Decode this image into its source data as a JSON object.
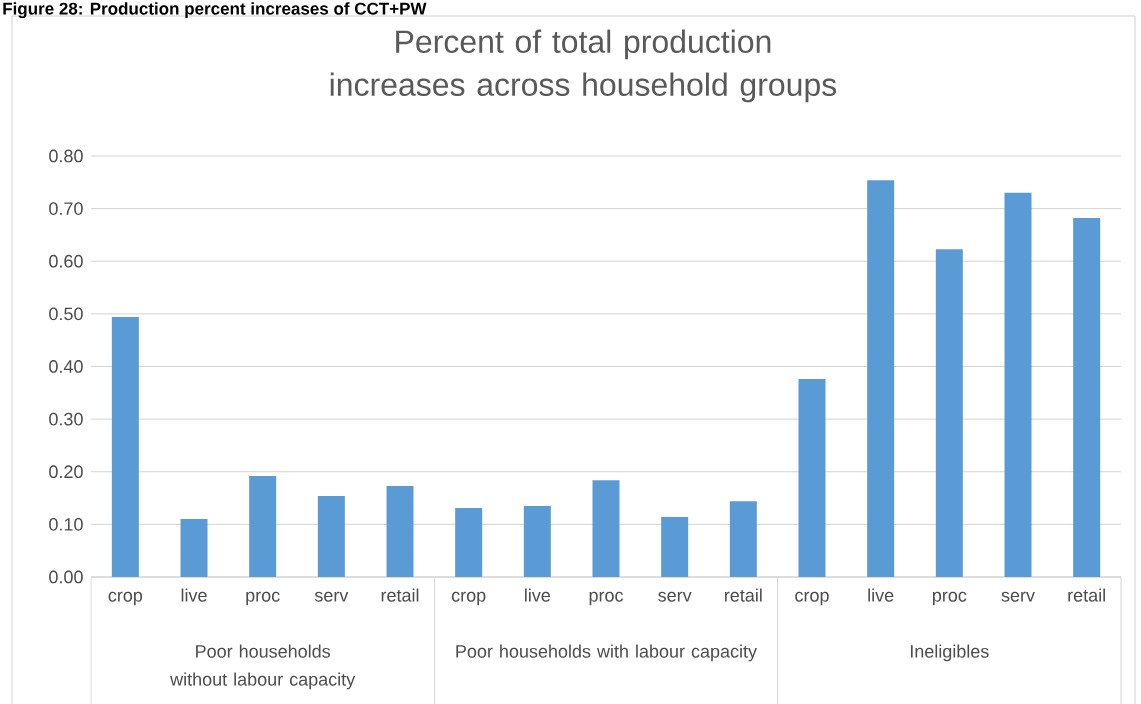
{
  "chart_data": {
    "type": "bar",
    "title": "Percent of total production increases across household groups",
    "categories": [
      "crop",
      "live",
      "proc",
      "serv",
      "retail",
      "crop",
      "live",
      "proc",
      "serv",
      "retail",
      "crop",
      "live",
      "proc",
      "serv",
      "retail"
    ],
    "values": [
      0.494,
      0.11,
      0.192,
      0.154,
      0.173,
      0.131,
      0.135,
      0.184,
      0.114,
      0.144,
      0.376,
      0.754,
      0.623,
      0.73,
      0.682
    ],
    "color": "#5b9bd5",
    "ylim": [
      0,
      0.8
    ],
    "yticks": [
      {
        "value": 0,
        "label": "0.00"
      },
      {
        "value": 0.1,
        "label": "0.10"
      },
      {
        "value": 0.2,
        "label": "0.20"
      },
      {
        "value": 0.3,
        "label": "0.30"
      },
      {
        "value": 0.4,
        "label": "0.40"
      },
      {
        "value": 0.5,
        "label": "0.50"
      },
      {
        "value": 0.6,
        "label": "0.60"
      },
      {
        "value": 0.7,
        "label": "0.70"
      },
      {
        "value": 0.8,
        "label": "0.80"
      }
    ],
    "grid": "y",
    "annotations": [
      "Figure 28: Production percent increases of CCT+PW",
      "Poor households without labour capacity",
      "Poor households with labour capacity",
      "Ineligibles"
    ]
  }
}
